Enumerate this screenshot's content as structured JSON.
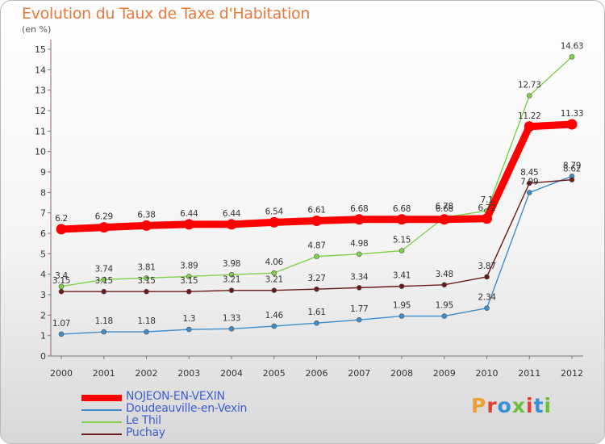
{
  "header": {
    "title": "Evolution du Taux de Taxe d'Habitation",
    "subtitle": "(en %)"
  },
  "logo": {
    "text": "Proxiti",
    "letter_colors": [
      "#f0a030",
      "#e04030",
      "#3a90d0",
      "#6cbf3a",
      "#e04030",
      "#3a90d0",
      "#6cbf3a"
    ]
  },
  "chart_data": {
    "type": "line",
    "x": [
      "2000",
      "2001",
      "2002",
      "2003",
      "2004",
      "2005",
      "2006",
      "2007",
      "2008",
      "2009",
      "2010",
      "2011",
      "2012"
    ],
    "ylim": [
      0,
      15
    ],
    "yticks": [
      0,
      1,
      2,
      3,
      4,
      5,
      6,
      7,
      8,
      9,
      10,
      11,
      12,
      13,
      14,
      15
    ],
    "grid": false,
    "legend_position": "bottom-left",
    "series": [
      {
        "name": "NOJEON-EN-VEXIN",
        "color": "#ff0000",
        "values": [
          6.2,
          6.29,
          6.38,
          6.44,
          6.44,
          6.54,
          6.61,
          6.68,
          6.68,
          6.68,
          6.72,
          11.22,
          11.33
        ],
        "labels": [
          "6.2",
          "6.29",
          "6.38",
          "6.44",
          "6.44",
          "6.54",
          "6.61",
          "6.68",
          "6.68",
          "6.68",
          "6.72",
          "11.22",
          "11.33"
        ]
      },
      {
        "name": "Doudeauville-en-Vexin",
        "color": "#3d8ccc",
        "values": [
          1.07,
          1.18,
          1.18,
          1.3,
          1.33,
          1.46,
          1.61,
          1.77,
          1.95,
          1.95,
          2.34,
          7.99,
          8.79
        ],
        "labels": [
          "1.07",
          "1.18",
          "1.18",
          "1.3",
          "1.33",
          "1.46",
          "1.61",
          "1.77",
          "1.95",
          "1.95",
          "2.34",
          "7.99",
          "8.79"
        ]
      },
      {
        "name": "Le Thil",
        "color": "#7ed14a",
        "values": [
          3.4,
          3.74,
          3.81,
          3.89,
          3.98,
          4.06,
          4.87,
          4.98,
          5.15,
          6.78,
          7.1,
          12.73,
          14.63
        ],
        "labels": [
          "3.4",
          "3.74",
          "3.81",
          "3.89",
          "3.98",
          "4.06",
          "4.87",
          "4.98",
          "5.15",
          "6.78",
          "7.1",
          "12.73",
          "14.63"
        ]
      },
      {
        "name": "Puchay",
        "color": "#6b1a1a",
        "values": [
          3.15,
          3.15,
          3.15,
          3.15,
          3.21,
          3.21,
          3.27,
          3.34,
          3.41,
          3.48,
          3.87,
          8.45,
          8.62
        ],
        "labels": [
          "3.15",
          "3.15",
          "3.15",
          "3.15",
          "3.21",
          "3.21",
          "3.27",
          "3.34",
          "3.41",
          "3.48",
          "3.87",
          "8.45",
          "8.62"
        ]
      }
    ]
  }
}
